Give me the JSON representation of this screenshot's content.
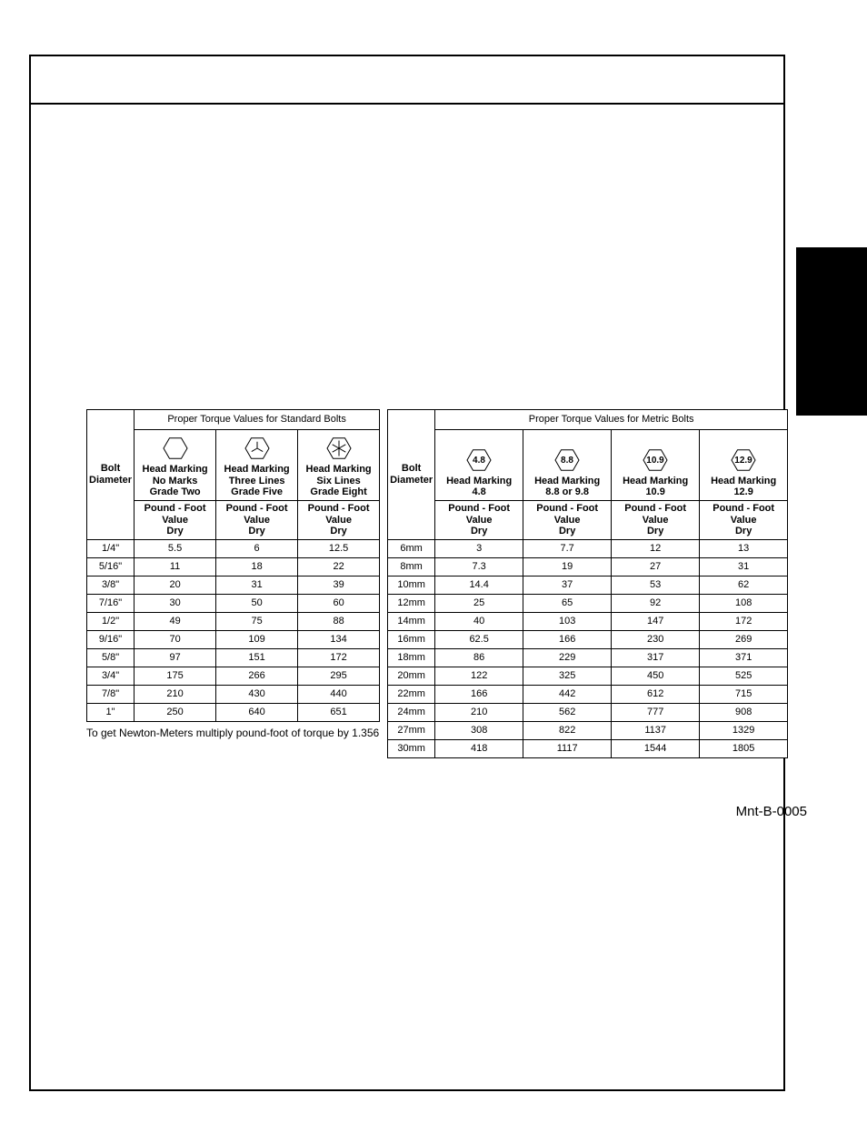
{
  "standard": {
    "title": "Proper Torque Values for Standard Bolts",
    "diameter_label": "Bolt\nDiameter",
    "columns": [
      {
        "line1": "Head Marking",
        "line2": "No Marks",
        "line3": "Grade Two",
        "hex_label": "",
        "hex_marks": "none"
      },
      {
        "line1": "Head Marking",
        "line2": "Three Lines",
        "line3": "Grade Five",
        "hex_label": "",
        "hex_marks": "three"
      },
      {
        "line1": "Head Marking",
        "line2": "Six Lines",
        "line3": "Grade Eight",
        "hex_label": "",
        "hex_marks": "six"
      }
    ],
    "unit_label": "Pound - Foot Value\nDry",
    "rows": [
      {
        "dia": "1/4\"",
        "v": [
          "5.5",
          "6",
          "12.5"
        ]
      },
      {
        "dia": "5/16\"",
        "v": [
          "11",
          "18",
          "22"
        ]
      },
      {
        "dia": "3/8\"",
        "v": [
          "20",
          "31",
          "39"
        ]
      },
      {
        "dia": "7/16\"",
        "v": [
          "30",
          "50",
          "60"
        ]
      },
      {
        "dia": "1/2\"",
        "v": [
          "49",
          "75",
          "88"
        ]
      },
      {
        "dia": "9/16\"",
        "v": [
          "70",
          "109",
          "134"
        ]
      },
      {
        "dia": "5/8\"",
        "v": [
          "97",
          "151",
          "172"
        ]
      },
      {
        "dia": "3/4\"",
        "v": [
          "175",
          "266",
          "295"
        ]
      },
      {
        "dia": "7/8\"",
        "v": [
          "210",
          "430",
          "440"
        ]
      },
      {
        "dia": "1\"",
        "v": [
          "250",
          "640",
          "651"
        ]
      }
    ],
    "footnote": "To get Newton-Meters multiply pound-foot of torque by 1.356",
    "col_widths": {
      "dia": 44,
      "data": 90
    }
  },
  "metric": {
    "title": "Proper Torque Values for Metric Bolts",
    "diameter_label": "Bolt\nDiameter",
    "columns": [
      {
        "line1": "Head Marking",
        "line2": "4.8",
        "line3": "",
        "hex_label": "4.8",
        "hex_marks": "none"
      },
      {
        "line1": "Head Marking",
        "line2": "8.8 or 9.8",
        "line3": "",
        "hex_label": "8.8",
        "hex_marks": "none"
      },
      {
        "line1": "Head Marking",
        "line2": "10.9",
        "line3": "",
        "hex_label": "10.9",
        "hex_marks": "none"
      },
      {
        "line1": "Head Marking",
        "line2": "12.9",
        "line3": "",
        "hex_label": "12.9",
        "hex_marks": "none"
      }
    ],
    "unit_label": "Pound - Foot Value\nDry",
    "rows": [
      {
        "dia": "6mm",
        "v": [
          "3",
          "7.7",
          "12",
          "13"
        ]
      },
      {
        "dia": "8mm",
        "v": [
          "7.3",
          "19",
          "27",
          "31"
        ]
      },
      {
        "dia": "10mm",
        "v": [
          "14.4",
          "37",
          "53",
          "62"
        ]
      },
      {
        "dia": "12mm",
        "v": [
          "25",
          "65",
          "92",
          "108"
        ]
      },
      {
        "dia": "14mm",
        "v": [
          "40",
          "103",
          "147",
          "172"
        ]
      },
      {
        "dia": "16mm",
        "v": [
          "62.5",
          "166",
          "230",
          "269"
        ]
      },
      {
        "dia": "18mm",
        "v": [
          "86",
          "229",
          "317",
          "371"
        ]
      },
      {
        "dia": "20mm",
        "v": [
          "122",
          "325",
          "450",
          "525"
        ]
      },
      {
        "dia": "22mm",
        "v": [
          "166",
          "442",
          "612",
          "715"
        ]
      },
      {
        "dia": "24mm",
        "v": [
          "210",
          "562",
          "777",
          "908"
        ]
      },
      {
        "dia": "27mm",
        "v": [
          "308",
          "822",
          "1137",
          "1329"
        ]
      },
      {
        "dia": "30mm",
        "v": [
          "418",
          "1117",
          "1544",
          "1805"
        ]
      }
    ],
    "col_widths": {
      "dia": 44,
      "data": 97
    }
  },
  "reference_id": "Mnt-B-0005",
  "colors": {
    "border": "#000000",
    "background": "#ffffff",
    "text": "#000000",
    "tab": "#000000"
  },
  "hex_icon": {
    "width": 34,
    "height": 30,
    "stroke": "#000000",
    "stroke_width": 1,
    "label_fontsize": 10
  }
}
